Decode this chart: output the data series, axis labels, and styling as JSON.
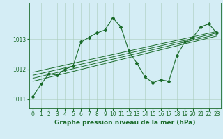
{
  "xlabel": "Graphe pression niveau de la mer (hPa)",
  "background_color": "#d4edf5",
  "plot_bg_color": "#d4edf5",
  "grid_color": "#aaccbb",
  "line_color": "#1a6b2a",
  "hours": [
    0,
    1,
    2,
    3,
    4,
    5,
    6,
    7,
    8,
    9,
    10,
    11,
    12,
    13,
    14,
    15,
    16,
    17,
    18,
    19,
    20,
    21,
    22,
    23
  ],
  "pressure": [
    1011.1,
    1011.5,
    1011.85,
    1011.8,
    1012.0,
    1012.1,
    1012.9,
    1013.05,
    1013.2,
    1013.3,
    1013.7,
    1013.4,
    1012.6,
    1012.2,
    1011.75,
    1011.55,
    1011.65,
    1011.6,
    1012.45,
    1012.9,
    1013.05,
    1013.4,
    1013.5,
    1013.2
  ],
  "trend_lines": [
    {
      "x0": 0,
      "y0": 1011.6,
      "x1": 23,
      "y1": 1013.1
    },
    {
      "x0": 0,
      "y0": 1011.7,
      "x1": 23,
      "y1": 1013.15
    },
    {
      "x0": 0,
      "y0": 1011.8,
      "x1": 23,
      "y1": 1013.2
    },
    {
      "x0": 0,
      "y0": 1011.9,
      "x1": 23,
      "y1": 1013.25
    }
  ],
  "ylim": [
    1010.7,
    1014.2
  ],
  "yticks": [
    1011,
    1012,
    1013
  ],
  "xticks": [
    0,
    1,
    2,
    3,
    4,
    5,
    6,
    7,
    8,
    9,
    10,
    11,
    12,
    13,
    14,
    15,
    16,
    17,
    18,
    19,
    20,
    21,
    22,
    23
  ],
  "tick_fontsize": 5.5,
  "label_fontsize": 6.5,
  "marker": "D",
  "markersize": 2.0,
  "linewidth": 0.8,
  "trend_linewidth": 0.7
}
